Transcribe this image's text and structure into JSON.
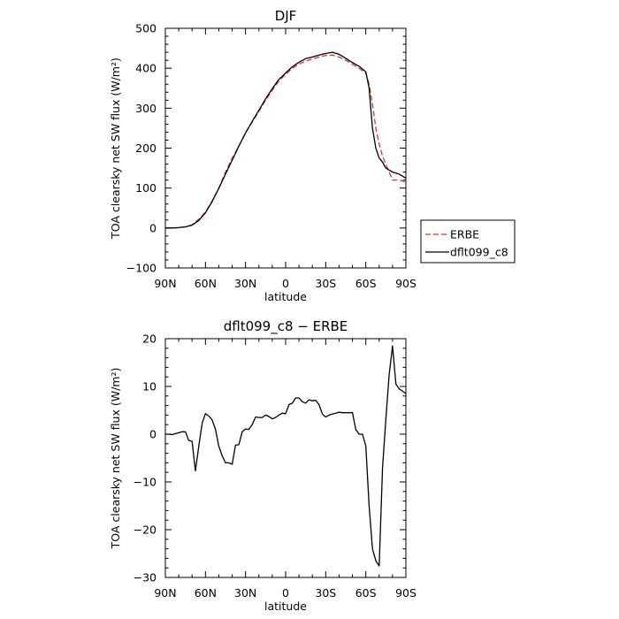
{
  "chart_data": [
    {
      "type": "line",
      "title": "DJF",
      "xlabel": "latitude",
      "ylabel": "TOA clearsky net SW flux (W/m²)",
      "xlim": [
        90,
        -90
      ],
      "ylim": [
        -100,
        500
      ],
      "xticks": [
        90,
        60,
        30,
        0,
        -30,
        -60,
        -90
      ],
      "xtick_labels": [
        "90N",
        "60N",
        "30N",
        "0",
        "30S",
        "60S",
        "90S"
      ],
      "yticks": [
        -100,
        0,
        100,
        200,
        300,
        400,
        500
      ],
      "ytick_labels": [
        "−100",
        "0",
        "100",
        "200",
        "300",
        "400",
        "500"
      ],
      "legend": "right",
      "series": [
        {
          "name": "ERBE",
          "color": "#e03030",
          "dash": true,
          "x": [
            90,
            85,
            80,
            75,
            70,
            65,
            60,
            55,
            50,
            45,
            40,
            35,
            30,
            25,
            20,
            15,
            10,
            5,
            0,
            -5,
            -10,
            -15,
            -20,
            -25,
            -30,
            -35,
            -40,
            -45,
            -50,
            -55,
            -60,
            -62.5,
            -65,
            -67.5,
            -70,
            -72.5,
            -75,
            -80,
            -85,
            -90
          ],
          "y": [
            0,
            0,
            1,
            3,
            8,
            22,
            40,
            68,
            100,
            140,
            175,
            205,
            238,
            265,
            292,
            320,
            345,
            368,
            385,
            400,
            410,
            418,
            423,
            428,
            432,
            433,
            428,
            420,
            410,
            400,
            388,
            360,
            310,
            250,
            210,
            180,
            160,
            120,
            120,
            115
          ]
        },
        {
          "name": "dflt099_c8",
          "color": "#000000",
          "dash": false,
          "x": [
            90,
            85,
            80,
            75,
            70,
            65,
            60,
            55,
            50,
            45,
            40,
            35,
            30,
            25,
            20,
            15,
            10,
            5,
            0,
            -5,
            -10,
            -15,
            -20,
            -25,
            -30,
            -35,
            -40,
            -45,
            -50,
            -55,
            -60,
            -62.5,
            -65,
            -67.5,
            -70,
            -72.5,
            -75,
            -80,
            -85,
            -90
          ],
          "y": [
            0,
            0,
            1,
            3,
            7,
            19,
            38,
            66,
            99,
            135,
            170,
            205,
            238,
            267,
            295,
            323,
            349,
            372,
            388,
            404,
            415,
            424,
            428,
            433,
            437,
            440,
            435,
            425,
            414,
            405,
            391,
            350,
            250,
            200,
            175,
            165,
            150,
            140,
            135,
            125
          ]
        }
      ]
    },
    {
      "type": "line",
      "title": "dflt099_c8 − ERBE",
      "xlabel": "latitude",
      "ylabel": "TOA clearsky net SW flux (W/m²)",
      "xlim": [
        90,
        -90
      ],
      "ylim": [
        -30,
        20
      ],
      "xticks": [
        90,
        60,
        30,
        0,
        -30,
        -60,
        -90
      ],
      "xtick_labels": [
        "90N",
        "60N",
        "30N",
        "0",
        "30S",
        "60S",
        "90S"
      ],
      "yticks": [
        -30,
        -20,
        -10,
        0,
        10,
        20
      ],
      "ytick_labels": [
        "−30",
        "−20",
        "−10",
        "0",
        "10",
        "20"
      ],
      "series": [
        {
          "color": "#000000",
          "dash": false,
          "x": [
            90,
            87.5,
            85,
            82.5,
            80,
            77.5,
            75,
            72.5,
            70,
            67.5,
            65,
            62.5,
            60,
            57.5,
            55,
            52.5,
            50,
            47.5,
            45,
            42.5,
            40,
            37.5,
            35,
            32.5,
            30,
            27.5,
            25,
            22.5,
            20,
            17.5,
            15,
            12.5,
            10,
            7.5,
            5,
            2.5,
            0,
            -2.5,
            -5,
            -7.5,
            -10,
            -12.5,
            -15,
            -17.5,
            -20,
            -22.5,
            -25,
            -27.5,
            -30,
            -32.5,
            -35,
            -37.5,
            -40,
            -42.5,
            -45,
            -47.5,
            -50,
            -52.5,
            -55,
            -57.5,
            -60,
            -62.5,
            -65,
            -67.5,
            -70,
            -72.5,
            -75,
            -77.5,
            -80,
            -82.5,
            -85,
            -87.5,
            -90
          ],
          "y": [
            0,
            0,
            -0.1,
            0.1,
            0.3,
            0.5,
            0.5,
            -1.3,
            -1.5,
            -7.7,
            -2.5,
            2.3,
            4.3,
            3.8,
            3,
            1,
            -2.5,
            -4.5,
            -6,
            -6,
            -6.3,
            -2.3,
            -2.2,
            0.5,
            1.1,
            1,
            2,
            3.6,
            3.5,
            3.5,
            4,
            3.7,
            3.2,
            3.5,
            4,
            4.4,
            4.3,
            6.2,
            6.5,
            7.6,
            7.6,
            6.8,
            6.5,
            7.2,
            7,
            7.1,
            6.2,
            4.2,
            3.6,
            4,
            4.2,
            4.4,
            4.6,
            4.5,
            4.5,
            4.5,
            4.5,
            1,
            0,
            0,
            -2.5,
            -15,
            -24,
            -26.5,
            -27.6,
            -7,
            3,
            12.5,
            18.5,
            10.5,
            9.5,
            9,
            8.5
          ]
        }
      ]
    }
  ]
}
